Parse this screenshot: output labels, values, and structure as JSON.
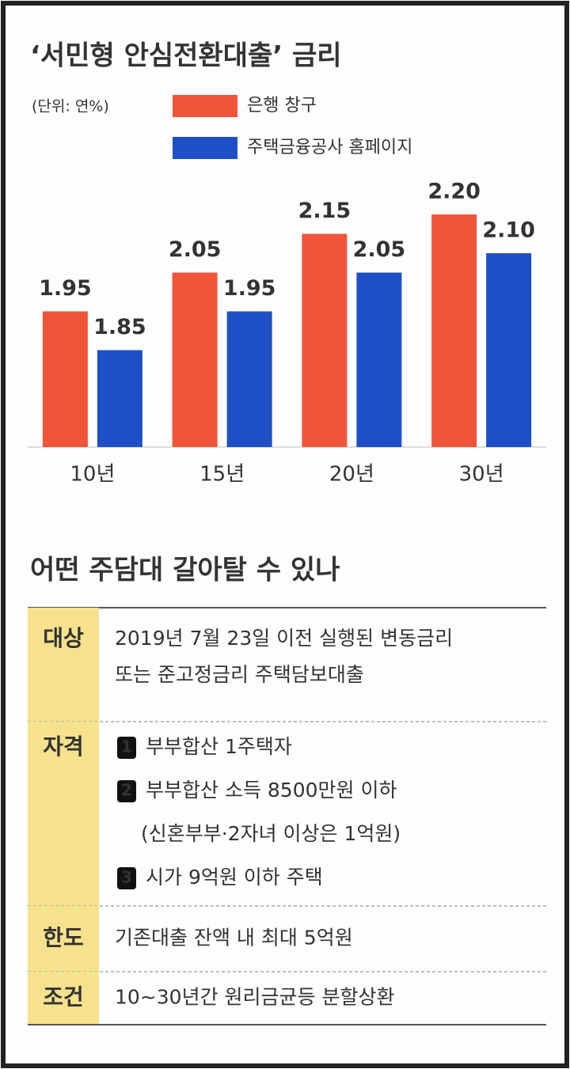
{
  "chart_data": {
    "type": "bar",
    "title": "‘서민형 안심전환대출’ 금리",
    "subtitle": "(단위: 연%)",
    "categories": [
      "10년",
      "15년",
      "20년",
      "30년"
    ],
    "series": [
      {
        "name": "은행 창구",
        "color": "#f0553a",
        "values": [
          1.95,
          2.05,
          2.15,
          2.2
        ],
        "value_labels": [
          "1.95",
          "2.05",
          "2.15",
          "2.20"
        ]
      },
      {
        "name": "주택금융공사 홈페이지",
        "color": "#1f4fc4",
        "values": [
          1.85,
          1.95,
          2.05,
          2.1
        ],
        "value_labels": [
          "1.85",
          "1.95",
          "2.05",
          "2.10"
        ]
      }
    ],
    "ylim": [
      1.6,
      2.3
    ]
  },
  "section": {
    "title": "어떤 주담대 갈아탈 수 있나"
  },
  "table": {
    "rows": [
      {
        "label": "대상",
        "lines": [
          "2019년 7월 23일 이전 실행된 변동금리",
          "또는 준고정금리 주택담보대출"
        ]
      },
      {
        "label": "자격",
        "items": [
          {
            "number": "1",
            "lines": [
              "부부합산 1주택자"
            ]
          },
          {
            "number": "2",
            "lines": [
              "부부합산 소득 8500만원 이하",
              "(신혼부부·2자녀 이상은 1억원)"
            ]
          },
          {
            "number": "3",
            "lines": [
              "시가 9억원 이하 주택"
            ]
          }
        ]
      },
      {
        "label": "한도",
        "lines": [
          "기존대출 잔액 내 최대 5억원"
        ]
      },
      {
        "label": "조건",
        "lines": [
          "10~30년간 원리금균등 분할상환"
        ]
      }
    ]
  }
}
